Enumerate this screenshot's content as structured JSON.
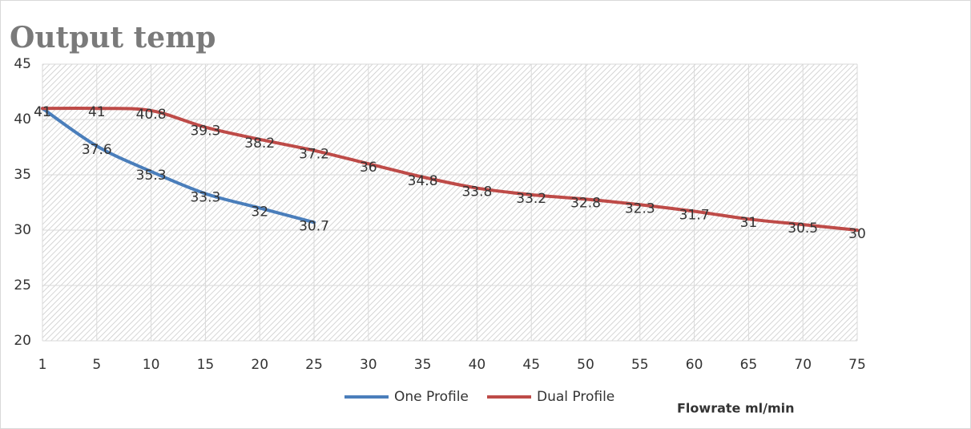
{
  "chart_data": {
    "type": "line",
    "title": "Output temp",
    "x_label": "Flowrate ml/min",
    "categories": [
      "1",
      "5",
      "10",
      "15",
      "20",
      "25",
      "30",
      "35",
      "40",
      "45",
      "50",
      "55",
      "60",
      "65",
      "70",
      "75"
    ],
    "series": [
      {
        "name": "One Profile",
        "color": "#4a7ebb",
        "values": [
          41,
          37.6,
          35.3,
          33.3,
          32,
          30.7,
          null,
          null,
          null,
          null,
          null,
          null,
          null,
          null,
          null,
          null
        ]
      },
      {
        "name": "Dual Profile",
        "color": "#be4b48",
        "values": [
          41,
          41,
          40.8,
          39.3,
          38.2,
          37.2,
          36,
          34.8,
          33.8,
          33.2,
          32.8,
          32.3,
          31.7,
          31,
          30.5,
          30
        ]
      }
    ],
    "ylim": [
      20,
      45
    ],
    "yticks": [
      20,
      25,
      30,
      35,
      40,
      45
    ],
    "grid": true,
    "legend": "bottom"
  }
}
